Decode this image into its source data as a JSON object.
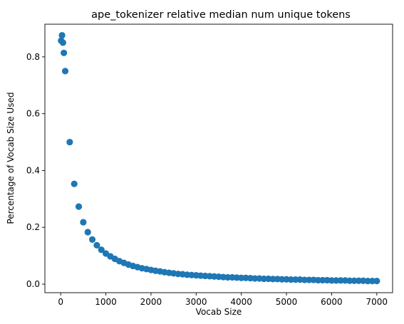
{
  "chart_data": {
    "type": "scatter",
    "title": "ape_tokenizer relative median num unique tokens",
    "xlabel": "Vocab Size",
    "ylabel": "Percentage of Vocab Size Used",
    "xlim": [
      -350,
      7350
    ],
    "ylim": [
      -0.03,
      0.915
    ],
    "xticks": [
      0,
      1000,
      2000,
      3000,
      4000,
      5000,
      6000,
      7000
    ],
    "yticks": [
      0.0,
      0.2,
      0.4,
      0.6,
      0.8
    ],
    "xtick_labels": [
      "0",
      "1000",
      "2000",
      "3000",
      "4000",
      "5000",
      "6000",
      "7000"
    ],
    "ytick_labels": [
      "0.0",
      "0.2",
      "0.4",
      "0.6",
      "0.8"
    ],
    "grid": false,
    "point_color": "#1f77b4",
    "x": [
      10,
      30,
      50,
      70,
      100,
      200,
      300,
      400,
      500,
      600,
      700,
      800,
      900,
      1000,
      1100,
      1200,
      1300,
      1400,
      1500,
      1600,
      1700,
      1800,
      1900,
      2000,
      2100,
      2200,
      2300,
      2400,
      2500,
      2600,
      2700,
      2800,
      2900,
      3000,
      3100,
      3200,
      3300,
      3400,
      3500,
      3600,
      3700,
      3800,
      3900,
      4000,
      4100,
      4200,
      4300,
      4400,
      4500,
      4600,
      4700,
      4800,
      4900,
      5000,
      5100,
      5200,
      5300,
      5400,
      5500,
      5600,
      5700,
      5800,
      5900,
      6000,
      6100,
      6200,
      6300,
      6400,
      6500,
      6600,
      6700,
      6800,
      6900,
      7000
    ],
    "y": [
      0.857,
      0.876,
      0.85,
      0.814,
      0.75,
      0.5,
      0.353,
      0.273,
      0.218,
      0.183,
      0.157,
      0.137,
      0.121,
      0.108,
      0.098,
      0.089,
      0.081,
      0.075,
      0.069,
      0.064,
      0.06,
      0.056,
      0.053,
      0.05,
      0.047,
      0.045,
      0.042,
      0.04,
      0.038,
      0.036,
      0.035,
      0.033,
      0.032,
      0.031,
      0.03,
      0.029,
      0.028,
      0.027,
      0.026,
      0.025,
      0.024,
      0.024,
      0.023,
      0.022,
      0.022,
      0.021,
      0.02,
      0.02,
      0.019,
      0.019,
      0.018,
      0.018,
      0.017,
      0.017,
      0.016,
      0.016,
      0.016,
      0.015,
      0.015,
      0.015,
      0.014,
      0.014,
      0.014,
      0.013,
      0.013,
      0.013,
      0.013,
      0.012,
      0.012,
      0.012,
      0.012,
      0.011,
      0.011,
      0.011
    ]
  }
}
